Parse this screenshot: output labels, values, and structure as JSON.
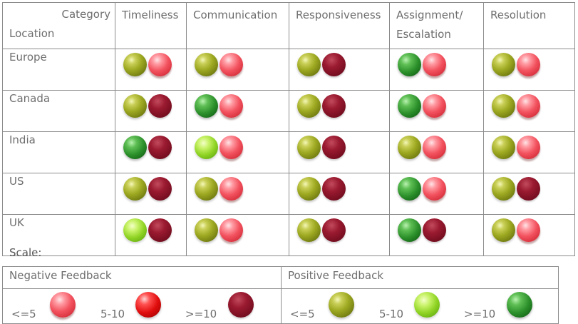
{
  "header": {
    "category_label": "Category",
    "location_label": "Location",
    "columns": [
      "Timeliness",
      "Communication",
      "Responsiveness",
      "Assignment/ Escalation",
      "Resolution"
    ]
  },
  "rows": [
    {
      "location": "Europe",
      "cells": [
        [
          "olive",
          "pink"
        ],
        [
          "olive",
          "pink"
        ],
        [
          "olive",
          "darkred"
        ],
        [
          "green",
          "pink"
        ],
        [
          "olive",
          "pink"
        ]
      ]
    },
    {
      "location": "Canada",
      "cells": [
        [
          "olive",
          "darkred"
        ],
        [
          "green",
          "pink"
        ],
        [
          "olive",
          "darkred"
        ],
        [
          "green",
          "pink"
        ],
        [
          "olive",
          "pink"
        ]
      ]
    },
    {
      "location": "India",
      "cells": [
        [
          "green",
          "darkred"
        ],
        [
          "lime",
          "pink"
        ],
        [
          "olive",
          "darkred"
        ],
        [
          "olive",
          "pink"
        ],
        [
          "olive",
          "pink"
        ]
      ]
    },
    {
      "location": "US",
      "cells": [
        [
          "olive",
          "darkred"
        ],
        [
          "olive",
          "pink"
        ],
        [
          "olive",
          "darkred"
        ],
        [
          "green",
          "pink"
        ],
        [
          "olive",
          "darkred"
        ]
      ]
    },
    {
      "location": "UK",
      "cells": [
        [
          "lime",
          "darkred"
        ],
        [
          "olive",
          "pink"
        ],
        [
          "olive",
          "darkred"
        ],
        [
          "green",
          "darkred"
        ],
        [
          "olive",
          "pink"
        ]
      ]
    }
  ],
  "scale": {
    "title": "Scale:",
    "negative": {
      "label": "Negative Feedback",
      "items": [
        {
          "text": "<=5",
          "marble": "pink"
        },
        {
          "text": "5-10",
          "marble": "red"
        },
        {
          "text": ">=10",
          "marble": "darkred"
        }
      ]
    },
    "positive": {
      "label": "Positive Feedback",
      "items": [
        {
          "text": "<=5",
          "marble": "olive"
        },
        {
          "text": "5-10",
          "marble": "lime"
        },
        {
          "text": ">=10",
          "marble": "green"
        }
      ]
    }
  },
  "colors": {
    "border": "#8c8c8c",
    "text": "#6e6e6e",
    "olive": "#9faa22",
    "pink": "#f2525e",
    "darkred": "#7a0f22",
    "green": "#2b8f2a",
    "lime": "#8fd324",
    "red": "#e00d0d"
  }
}
